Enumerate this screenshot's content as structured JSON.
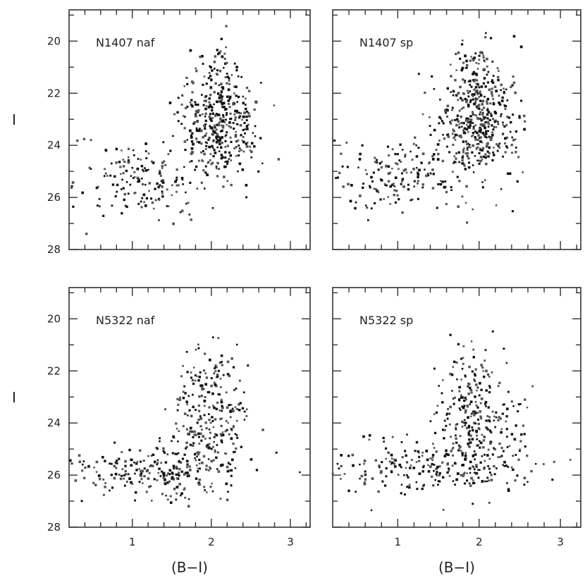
{
  "chart_data": [
    {
      "type": "scatter",
      "panel_label": "N1407 naf",
      "xlabel": "",
      "ylabel": "I",
      "xlim": [
        0.2,
        3.25
      ],
      "ylim": [
        28,
        18.8
      ],
      "xticks": [],
      "yticks": [
        "20",
        "22",
        "24",
        "26",
        "28"
      ],
      "clusters": [
        {
          "n": 380,
          "cx": 2.1,
          "cy": 23.2,
          "sx": 0.25,
          "sy": 1.0
        },
        {
          "n": 170,
          "cx": 1.1,
          "cy": 25.3,
          "sx": 0.45,
          "sy": 0.7
        },
        {
          "n": 40,
          "cx": 2.05,
          "cy": 21.0,
          "sx": 0.15,
          "sy": 0.6
        }
      ]
    },
    {
      "type": "scatter",
      "panel_label": "N1407 sp",
      "xlabel": "",
      "ylabel": "",
      "xlim": [
        0.2,
        3.25
      ],
      "ylim": [
        28,
        18.8
      ],
      "xticks": [],
      "yticks": [],
      "clusters": [
        {
          "n": 420,
          "cx": 2.0,
          "cy": 23.1,
          "sx": 0.25,
          "sy": 1.0
        },
        {
          "n": 180,
          "cx": 1.1,
          "cy": 25.1,
          "sx": 0.5,
          "sy": 0.75
        },
        {
          "n": 45,
          "cx": 2.0,
          "cy": 20.9,
          "sx": 0.15,
          "sy": 0.6
        }
      ]
    },
    {
      "type": "scatter",
      "panel_label": "N5322 naf",
      "xlabel": "(B−I)",
      "ylabel": "I",
      "xlim": [
        0.2,
        3.25
      ],
      "ylim": [
        28,
        18.8
      ],
      "xticks": [
        "1",
        "2",
        "3"
      ],
      "yticks": [
        "20",
        "22",
        "24",
        "26",
        "28"
      ],
      "clusters": [
        {
          "n": 230,
          "cx": 2.0,
          "cy": 23.9,
          "sx": 0.25,
          "sy": 1.1
        },
        {
          "n": 230,
          "cx": 1.3,
          "cy": 25.8,
          "sx": 0.6,
          "sy": 0.5
        },
        {
          "n": 30,
          "cx": 2.0,
          "cy": 22.0,
          "sx": 0.15,
          "sy": 0.5
        }
      ]
    },
    {
      "type": "scatter",
      "panel_label": "N5322 sp",
      "xlabel": "(B−I)",
      "ylabel": "",
      "xlim": [
        0.2,
        3.25
      ],
      "ylim": [
        28,
        18.8
      ],
      "xticks": [
        "1",
        "2",
        "3"
      ],
      "yticks": [],
      "clusters": [
        {
          "n": 240,
          "cx": 1.95,
          "cy": 23.9,
          "sx": 0.25,
          "sy": 1.1
        },
        {
          "n": 240,
          "cx": 1.3,
          "cy": 25.7,
          "sx": 0.7,
          "sy": 0.55
        },
        {
          "n": 30,
          "cx": 1.9,
          "cy": 22.0,
          "sx": 0.15,
          "sy": 0.5
        }
      ]
    }
  ]
}
